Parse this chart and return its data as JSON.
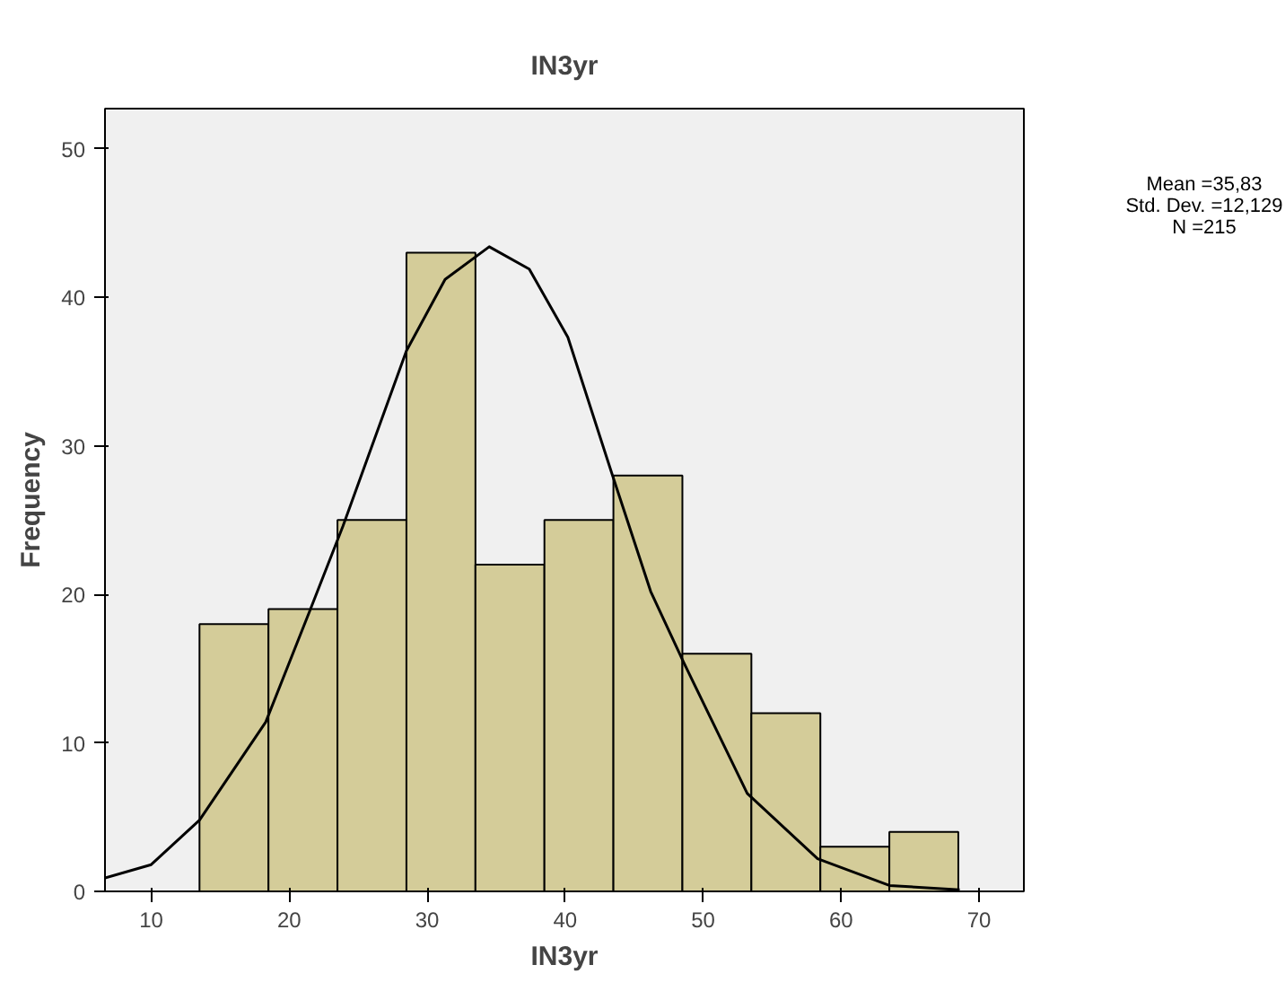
{
  "chart_data": {
    "type": "histogram",
    "title": "IN3yr",
    "xlabel": "IN3yr",
    "ylabel": "Frequency",
    "bins": [
      13.5,
      18.5,
      23.5,
      28.5,
      33.5,
      38.5,
      43.5,
      48.5,
      53.5,
      58.5,
      63.5,
      68.5
    ],
    "values": [
      18,
      19,
      25,
      43,
      22,
      25,
      28,
      16,
      12,
      3,
      4
    ],
    "color": "#d4cc99",
    "series": [
      {
        "type": "line",
        "color": "#000000",
        "x": [
          6.65,
          10,
          13.5,
          18.3,
          21.5,
          23.9,
          28.5,
          31.3,
          34.5,
          37.4,
          40.2,
          43.4,
          46.2,
          48.6,
          53.2,
          58.3,
          63.5,
          68.6
        ],
        "values": [
          0.9,
          1.8,
          4.8,
          11.4,
          18.9,
          24.6,
          36.4,
          41.2,
          43.4,
          41.9,
          37.3,
          28.1,
          20.2,
          15.4,
          6.6,
          2.2,
          0.4,
          0.1
        ]
      }
    ],
    "annotations": [
      "Mean =35,83",
      "Std. Dev. =12,129",
      "N =215"
    ],
    "xlim": [
      6.65,
      73.25
    ],
    "ylim": [
      0,
      52.7
    ],
    "xticks": [
      10,
      20,
      30,
      40,
      50,
      60,
      70
    ],
    "yticks": [
      0,
      10,
      20,
      30,
      40,
      50
    ],
    "grid": false
  }
}
